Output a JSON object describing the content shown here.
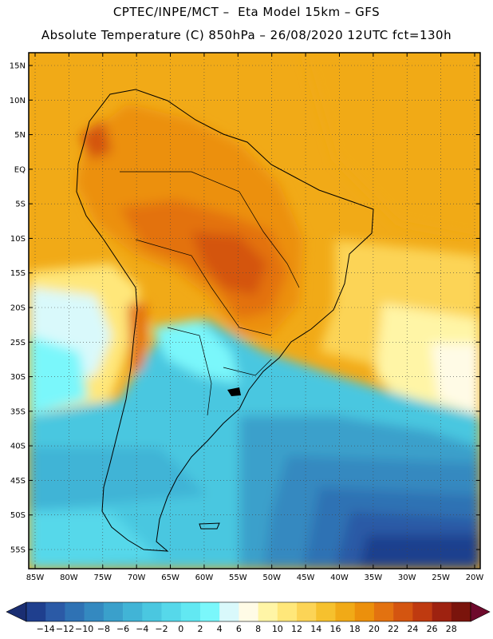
{
  "header": {
    "title_line1": "CPTEC/INPE/MCT –  Eta Model 15km – GFS",
    "title_line2": "Absolute Temperature (C) 850hPa – 26/08/2020 12UTC fct=130h"
  },
  "axes": {
    "lat_labels": [
      "15N",
      "10N",
      "5N",
      "EQ",
      "5S",
      "10S",
      "15S",
      "20S",
      "25S",
      "30S",
      "35S",
      "40S",
      "45S",
      "50S",
      "55S"
    ],
    "lat_values": [
      15,
      10,
      5,
      0,
      -5,
      -10,
      -15,
      -20,
      -25,
      -30,
      -35,
      -40,
      -45,
      -50,
      -55
    ],
    "lon_labels": [
      "85W",
      "80W",
      "75W",
      "70W",
      "65W",
      "60W",
      "55W",
      "50W",
      "45W",
      "40W",
      "35W",
      "30W",
      "25W",
      "20W"
    ],
    "lon_values": [
      -85,
      -80,
      -75,
      -70,
      -65,
      -60,
      -55,
      -50,
      -45,
      -40,
      -35,
      -30,
      -25,
      -20
    ]
  },
  "colorbar": {
    "labels": [
      "-14",
      "-12",
      "-10",
      "-8",
      "-6",
      "-4",
      "-2",
      "0",
      "2",
      "4",
      "6",
      "8",
      "10",
      "12",
      "14",
      "16",
      "18",
      "20",
      "22",
      "24",
      "26",
      "28"
    ],
    "colors": [
      "#1f3f8e",
      "#2b5aa6",
      "#2f72b4",
      "#3489c0",
      "#3aa0cb",
      "#41b4d6",
      "#4ac7e0",
      "#56d8ea",
      "#62e8f2",
      "#7af7fb",
      "#d9f9fb",
      "#fffbe6",
      "#fff5a6",
      "#ffe77a",
      "#fcd456",
      "#f6c12e",
      "#f1aa17",
      "#ec900c",
      "#e37210",
      "#d45510",
      "#bf3a10",
      "#9e2210",
      "#7a140c"
    ],
    "under_color": "#1a2e72",
    "over_color": "#6e0a2c"
  }
}
